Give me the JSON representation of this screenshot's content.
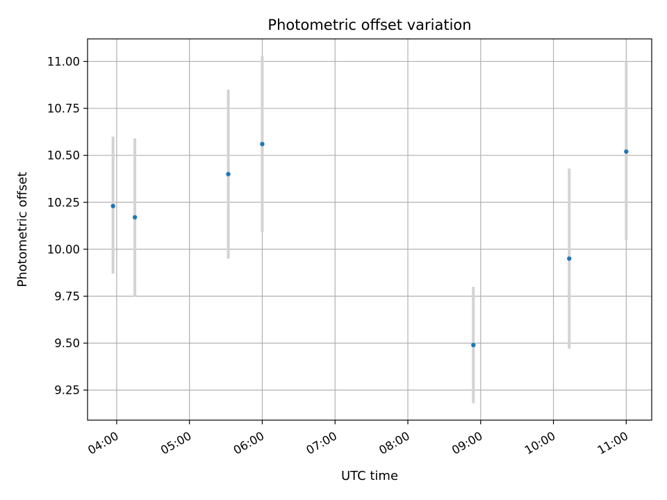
{
  "chart_data": {
    "type": "scatter",
    "title": "Photometric offset variation",
    "xlabel": "UTC time",
    "ylabel": "Photometric offset",
    "xlim": [
      "03:36",
      "11:21"
    ],
    "ylim": [
      9.09,
      11.12
    ],
    "x_ticks": [
      "04:00",
      "05:00",
      "06:00",
      "07:00",
      "08:00",
      "09:00",
      "10:00",
      "11:00"
    ],
    "y_ticks": [
      9.25,
      9.5,
      9.75,
      10.0,
      10.25,
      10.5,
      10.75,
      11.0
    ],
    "y_tick_labels": [
      "9.25",
      "9.50",
      "9.75",
      "10.00",
      "10.25",
      "10.50",
      "10.75",
      "11.00"
    ],
    "grid": true,
    "series": [
      {
        "points": [
          {
            "x": "03:57",
            "y": 10.23,
            "err_low": 9.87,
            "err_high": 10.6
          },
          {
            "x": "04:15",
            "y": 10.17,
            "err_low": 9.75,
            "err_high": 10.59
          },
          {
            "x": "05:32",
            "y": 10.4,
            "err_low": 9.95,
            "err_high": 10.85
          },
          {
            "x": "06:00",
            "y": 10.56,
            "err_low": 10.09,
            "err_high": 11.03
          },
          {
            "x": "08:54",
            "y": 9.49,
            "err_low": 9.18,
            "err_high": 9.8
          },
          {
            "x": "10:13",
            "y": 9.95,
            "err_low": 9.47,
            "err_high": 10.43
          },
          {
            "x": "11:00",
            "y": 10.52,
            "err_low": 10.05,
            "err_high": 11.0
          }
        ]
      }
    ],
    "colors": {
      "point": "#1f77b4",
      "errorbar": "#d3d3d3",
      "grid": "#b0b0b0",
      "axis": "#000000"
    }
  }
}
